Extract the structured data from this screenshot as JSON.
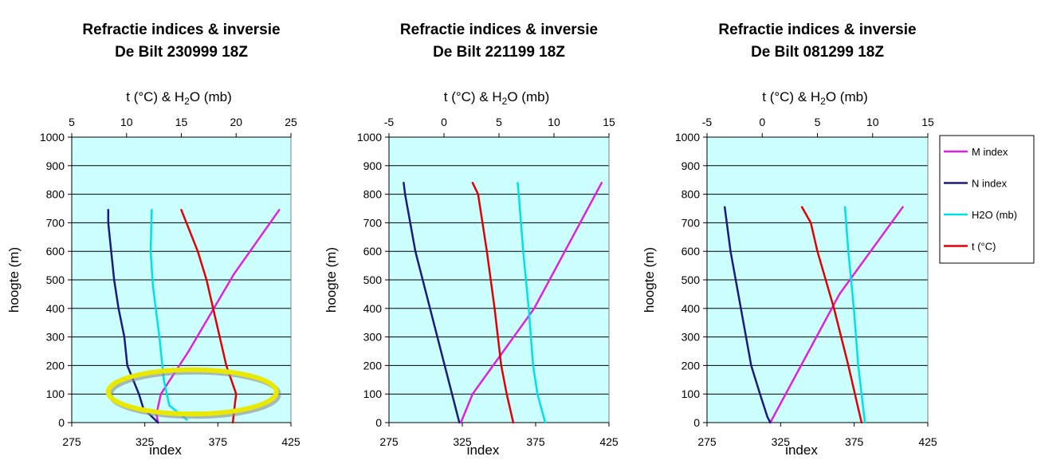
{
  "chart_data": [
    {
      "type": "line",
      "title": "Refractie indices & inversie",
      "subtitle": "De Bilt 230999 18Z",
      "xlabel": "index",
      "x2label": "t (°C) & H2O (mb)",
      "ylabel": "hoogte (m)",
      "xlim": [
        275,
        425
      ],
      "x2lim": [
        5,
        25
      ],
      "ylim": [
        0,
        1000
      ],
      "x_ticks": [
        "275",
        "325",
        "375",
        "425"
      ],
      "x2_ticks": [
        "5",
        "10",
        "15",
        "20",
        "25"
      ],
      "y_ticks": [
        "0",
        "100",
        "200",
        "300",
        "400",
        "500",
        "600",
        "700",
        "800",
        "900",
        "1000"
      ],
      "grid": true,
      "highlight": {
        "shape": "ellipse",
        "color": "#e8e800",
        "x_range": [
          300,
          415
        ],
        "y_range": [
          30,
          185
        ]
      },
      "series": [
        {
          "name": "M index",
          "axis": "bottom",
          "color": "#e020e0",
          "points": [
            [
              334,
              0
            ],
            [
              333,
              30
            ],
            [
              336,
              100
            ],
            [
              355,
              250
            ],
            [
              386,
              520
            ],
            [
              417,
              745
            ]
          ]
        },
        {
          "name": "N index",
          "axis": "bottom",
          "color": "#1a1a80",
          "points": [
            [
              334,
              0
            ],
            [
              324,
              50
            ],
            [
              321,
              100
            ],
            [
              313,
              200
            ],
            [
              311,
              300
            ],
            [
              307,
              400
            ],
            [
              304,
              500
            ],
            [
              302,
              600
            ],
            [
              300,
              700
            ],
            [
              300,
              745
            ]
          ]
        },
        {
          "name": "H2O (mb)",
          "axis": "top",
          "color": "#00e0e8",
          "points": [
            [
              15.5,
              10
            ],
            [
              13.9,
              60
            ],
            [
              13.4,
              150
            ],
            [
              13.0,
              300
            ],
            [
              12.4,
              480
            ],
            [
              12.2,
              600
            ],
            [
              12.3,
              745
            ]
          ]
        },
        {
          "name": "t (°C)",
          "axis": "top",
          "color": "#e00000",
          "points": [
            [
              15.0,
              745
            ],
            [
              16.5,
              600
            ],
            [
              17.3,
              500
            ],
            [
              17.9,
              400
            ],
            [
              19.1,
              200
            ],
            [
              20.0,
              100
            ],
            [
              19.9,
              70
            ],
            [
              19.7,
              0
            ]
          ]
        }
      ]
    },
    {
      "type": "line",
      "title": "Refractie indices & inversie",
      "subtitle": "De Bilt 221199 18Z",
      "xlabel": "index",
      "x2label": "t (°C) & H2O (mb)",
      "ylabel": "hoogte (m)",
      "xlim": [
        275,
        425
      ],
      "x2lim": [
        -5,
        15
      ],
      "ylim": [
        0,
        1000
      ],
      "x_ticks": [
        "275",
        "325",
        "375",
        "425"
      ],
      "x2_ticks": [
        "-5",
        "0",
        "5",
        "10",
        "15"
      ],
      "y_ticks": [
        "0",
        "100",
        "200",
        "300",
        "400",
        "500",
        "600",
        "700",
        "800",
        "900",
        "1000"
      ],
      "grid": true,
      "series": [
        {
          "name": "M index",
          "axis": "bottom",
          "color": "#e020e0",
          "points": [
            [
              324,
              0
            ],
            [
              332,
              100
            ],
            [
              374,
              400
            ],
            [
              420,
              840
            ]
          ]
        },
        {
          "name": "N index",
          "axis": "bottom",
          "color": "#1a1a80",
          "points": [
            [
              323,
              0
            ],
            [
              318,
              100
            ],
            [
              313,
              200
            ],
            [
              303,
              400
            ],
            [
              293,
              600
            ],
            [
              286,
              800
            ],
            [
              285,
              840
            ]
          ]
        },
        {
          "name": "H2O (mb)",
          "axis": "top",
          "color": "#00e0e8",
          "points": [
            [
              9.2,
              0
            ],
            [
              8.5,
              100
            ],
            [
              8.1,
              200
            ],
            [
              7.7,
              400
            ],
            [
              7.2,
              600
            ],
            [
              6.8,
              800
            ],
            [
              6.7,
              840
            ]
          ]
        },
        {
          "name": "t (°C)",
          "axis": "top",
          "color": "#e00000",
          "points": [
            [
              6.3,
              0
            ],
            [
              5.7,
              100
            ],
            [
              5.2,
              200
            ],
            [
              4.6,
              400
            ],
            [
              3.9,
              600
            ],
            [
              3.1,
              800
            ],
            [
              2.6,
              840
            ]
          ]
        }
      ]
    },
    {
      "type": "line",
      "title": "Refractie indices & inversie",
      "subtitle": "De Bilt 081299 18Z",
      "xlabel": "index",
      "x2label": "t (°C) & H2O (mb)",
      "ylabel": "hoogte (m)",
      "xlim": [
        275,
        425
      ],
      "x2lim": [
        -5,
        15
      ],
      "ylim": [
        0,
        1000
      ],
      "x_ticks": [
        "275",
        "325",
        "375",
        "425"
      ],
      "x2_ticks": [
        "-5",
        "0",
        "5",
        "10",
        "15"
      ],
      "y_ticks": [
        "0",
        "100",
        "200",
        "300",
        "400",
        "500",
        "600",
        "700",
        "800",
        "900",
        "1000"
      ],
      "grid": true,
      "series": [
        {
          "name": "M index",
          "axis": "bottom",
          "color": "#e020e0",
          "points": [
            [
              318,
              0
            ],
            [
              365,
              450
            ],
            [
              408,
              755
            ]
          ]
        },
        {
          "name": "N index",
          "axis": "bottom",
          "color": "#1a1a80",
          "points": [
            [
              318,
              0
            ],
            [
              316,
              20
            ],
            [
              311,
              100
            ],
            [
              305,
              200
            ],
            [
              298,
              400
            ],
            [
              291,
              600
            ],
            [
              287,
              755
            ]
          ]
        },
        {
          "name": "H2O (mb)",
          "axis": "top",
          "color": "#00e0e8",
          "points": [
            [
              9.3,
              0
            ],
            [
              9.0,
              100
            ],
            [
              8.7,
              200
            ],
            [
              8.3,
              400
            ],
            [
              7.8,
              600
            ],
            [
              7.5,
              755
            ]
          ]
        },
        {
          "name": "t (°C)",
          "axis": "top",
          "color": "#e00000",
          "points": [
            [
              9.0,
              0
            ],
            [
              8.7,
              50
            ],
            [
              7.8,
              200
            ],
            [
              6.5,
              400
            ],
            [
              5.0,
              600
            ],
            [
              4.4,
              700
            ],
            [
              3.6,
              755
            ]
          ]
        }
      ]
    }
  ],
  "legend": {
    "placement": "right",
    "items": [
      {
        "label": "M index",
        "color": "#e020e0"
      },
      {
        "label": "N index",
        "color": "#1a1a80"
      },
      {
        "label": "H2O (mb)",
        "color": "#00e0e8"
      },
      {
        "label": "t (°C)",
        "color": "#e00000"
      }
    ]
  },
  "colors": {
    "plot_background": "#ccffff",
    "grid": "#000000"
  }
}
